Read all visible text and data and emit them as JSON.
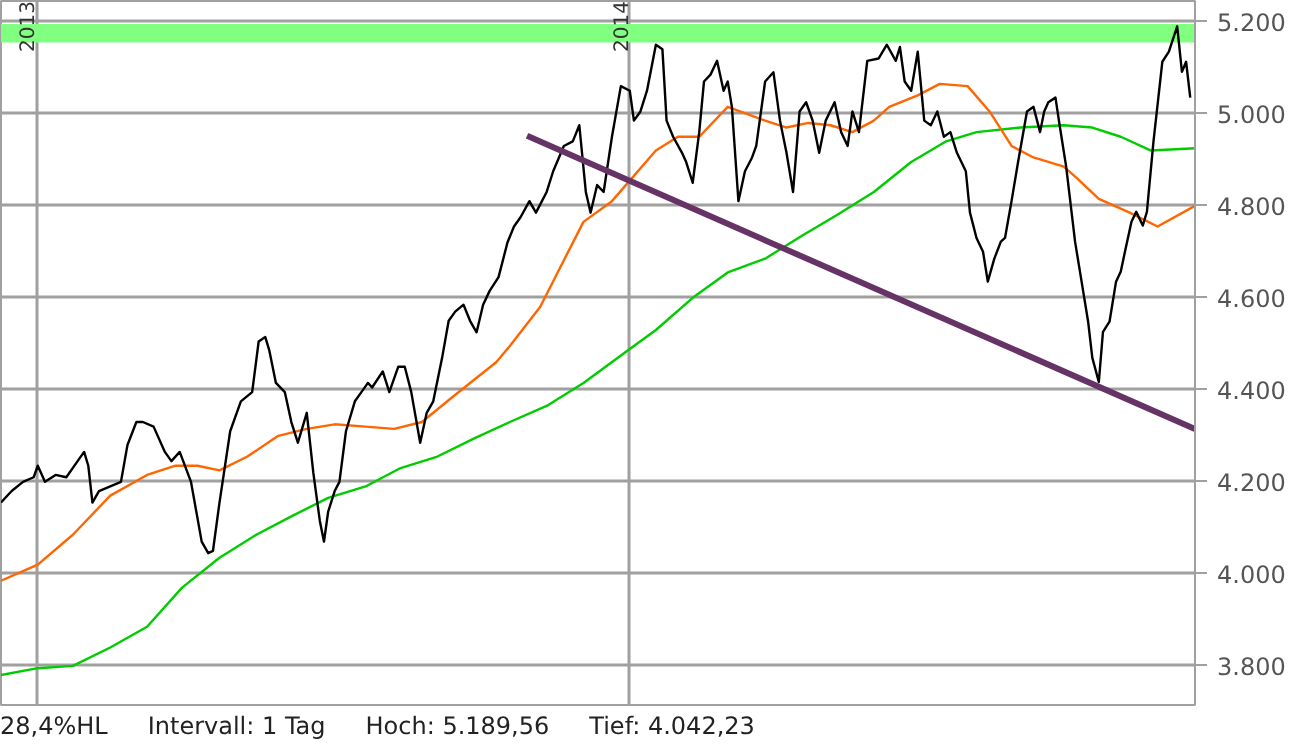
{
  "chart_data": {
    "type": "line",
    "xlim": [
      2012.941,
      2014.952
    ],
    "xticks": [
      2013,
      2014
    ],
    "ylim": [
      3715,
      5245
    ],
    "yticks": [
      {
        "value": 3800,
        "label": "3.800"
      },
      {
        "value": 4000,
        "label": "4.000"
      },
      {
        "value": 4200,
        "label": "4.200"
      },
      {
        "value": 4400,
        "label": "4.400"
      },
      {
        "value": 4600,
        "label": "4.600"
      },
      {
        "value": 4800,
        "label": "4.800"
      },
      {
        "value": 5000,
        "label": "5.000"
      },
      {
        "value": 5200,
        "label": "5.200"
      }
    ],
    "grid": true,
    "annotations": [
      "28,4%HL",
      "Intervall: 1 Tag",
      "Hoch: 5.189,56",
      "Tief: 4.042,23"
    ],
    "bands": [
      {
        "axis": "y",
        "from": 5155,
        "to": 5195,
        "color": "#80ff80"
      }
    ],
    "series": [
      {
        "color": "#00cc00",
        "x": [
          2012.941,
          2013.003,
          2013.062,
          2013.125,
          2013.187,
          2013.246,
          2013.309,
          2013.371,
          2013.43,
          2013.492,
          2013.555,
          2013.614,
          2013.676,
          2013.739,
          2013.798,
          2013.86,
          2013.922,
          2013.996,
          2014.044,
          2014.106,
          2014.165,
          2014.228,
          2014.29,
          2014.349,
          2014.411,
          2014.474,
          2014.533,
          2014.584,
          2014.658,
          2014.731,
          2014.779,
          2014.827,
          2014.878,
          2014.952
        ],
        "values": [
          3780,
          3795,
          3800,
          3840,
          3885,
          3970,
          4035,
          4085,
          4125,
          4165,
          4190,
          4230,
          4255,
          4295,
          4330,
          4365,
          4415,
          4485,
          4530,
          4600,
          4655,
          4685,
          4735,
          4780,
          4830,
          4895,
          4940,
          4960,
          4970,
          4975,
          4970,
          4950,
          4920,
          4925
        ]
      },
      {
        "color": "#ff6600",
        "x": [
          2012.941,
          2013.003,
          2013.062,
          2013.125,
          2013.187,
          2013.235,
          2013.272,
          2013.309,
          2013.356,
          2013.408,
          2013.456,
          2013.503,
          2013.555,
          2013.603,
          2013.65,
          2013.702,
          2013.775,
          2013.798,
          2013.849,
          2013.922,
          2013.97,
          2014.044,
          2014.081,
          2014.117,
          2014.165,
          2014.228,
          2014.264,
          2014.301,
          2014.338,
          2014.375,
          2014.411,
          2014.437,
          2014.485,
          2014.522,
          2014.569,
          2014.606,
          2014.643,
          2014.68,
          2014.731,
          2014.753,
          2014.79,
          2014.842,
          2014.889,
          2014.952
        ],
        "values": [
          3985,
          4020,
          4085,
          4170,
          4215,
          4235,
          4235,
          4225,
          4255,
          4300,
          4315,
          4325,
          4320,
          4315,
          4330,
          4385,
          4460,
          4495,
          4580,
          4765,
          4810,
          4920,
          4950,
          4950,
          5015,
          4985,
          4970,
          4980,
          4975,
          4960,
          4985,
          5015,
          5040,
          5065,
          5060,
          5005,
          4930,
          4905,
          4885,
          4860,
          4815,
          4785,
          4755,
          4800
        ]
      },
      {
        "color": "#000000",
        "x": [
          2012.941,
          2012.959,
          2012.978,
          2012.996,
          2013.003,
          2013.015,
          2013.033,
          2013.051,
          2013.07,
          2013.081,
          2013.088,
          2013.095,
          2013.106,
          2013.125,
          2013.143,
          2013.154,
          2013.169,
          2013.18,
          2013.198,
          2013.217,
          2013.228,
          2013.242,
          2013.261,
          2013.279,
          2013.29,
          2013.298,
          2013.309,
          2013.327,
          2013.345,
          2013.364,
          2013.375,
          2013.386,
          2013.393,
          2013.404,
          2013.419,
          2013.43,
          2013.441,
          2013.456,
          2013.467,
          2013.478,
          2013.485,
          2013.492,
          2013.503,
          2013.511,
          2013.522,
          2013.537,
          2013.548,
          2013.559,
          2013.566,
          2013.584,
          2013.595,
          2013.61,
          2013.621,
          2013.632,
          2013.647,
          2013.658,
          2013.669,
          2013.684,
          2013.695,
          2013.706,
          2013.72,
          2013.731,
          2013.742,
          2013.753,
          2013.764,
          2013.779,
          2013.794,
          2013.805,
          2013.816,
          2013.831,
          2013.842,
          2013.86,
          2013.871,
          2013.889,
          2013.904,
          2013.915,
          2013.926,
          2013.934,
          2013.945,
          2013.956,
          2013.97,
          2013.985,
          2014.0,
          2014.007,
          2014.018,
          2014.029,
          2014.044,
          2014.055,
          2014.062,
          2014.073,
          2014.088,
          2014.095,
          2014.106,
          2014.117,
          2014.125,
          2014.136,
          2014.147,
          2014.158,
          2014.165,
          2014.172,
          2014.183,
          2014.194,
          2014.206,
          2014.213,
          2014.228,
          2014.242,
          2014.253,
          2014.264,
          2014.275,
          2014.286,
          2014.297,
          2014.308,
          2014.319,
          2014.33,
          2014.345,
          2014.356,
          2014.367,
          2014.375,
          2014.386,
          2014.4,
          2014.419,
          2014.433,
          2014.448,
          2014.455,
          2014.463,
          2014.474,
          2014.485,
          2014.496,
          2014.507,
          2014.518,
          2014.529,
          2014.54,
          2014.551,
          2014.566,
          2014.573,
          2014.584,
          2014.595,
          2014.603,
          2014.614,
          2014.625,
          2014.632,
          2014.643,
          2014.654,
          2014.669,
          2014.68,
          2014.691,
          2014.698,
          2014.705,
          2014.717,
          2014.724,
          2014.735,
          2014.75,
          2014.761,
          2014.772,
          2014.779,
          2014.79,
          2014.797,
          2014.808,
          2014.819,
          2014.827,
          2014.834,
          2014.845,
          2014.853,
          2014.864,
          2014.871,
          2014.882,
          2014.897,
          2014.908,
          2014.922,
          2014.93,
          2014.937,
          2014.944
        ],
        "values": [
          4155,
          4180,
          4200,
          4210,
          4235,
          4200,
          4215,
          4210,
          4245,
          4265,
          4235,
          4155,
          4180,
          4190,
          4200,
          4280,
          4330,
          4330,
          4320,
          4265,
          4245,
          4265,
          4200,
          4070,
          4045,
          4050,
          4155,
          4310,
          4375,
          4395,
          4505,
          4515,
          4485,
          4415,
          4395,
          4330,
          4285,
          4350,
          4220,
          4115,
          4070,
          4135,
          4180,
          4200,
          4310,
          4375,
          4395,
          4415,
          4405,
          4440,
          4395,
          4450,
          4450,
          4395,
          4285,
          4350,
          4375,
          4470,
          4550,
          4570,
          4585,
          4550,
          4525,
          4585,
          4615,
          4645,
          4720,
          4755,
          4775,
          4810,
          4785,
          4830,
          4875,
          4930,
          4940,
          4975,
          4830,
          4785,
          4845,
          4830,
          4950,
          5060,
          5050,
          4985,
          5005,
          5050,
          5150,
          5140,
          4985,
          4950,
          4915,
          4895,
          4850,
          4960,
          5070,
          5085,
          5115,
          5050,
          5070,
          5015,
          4810,
          4875,
          4905,
          4930,
          5070,
          5090,
          4985,
          4915,
          4830,
          5005,
          5025,
          4985,
          4915,
          4985,
          5025,
          4960,
          4930,
          5005,
          4960,
          5115,
          5120,
          5150,
          5115,
          5145,
          5070,
          5050,
          5135,
          4985,
          4975,
          5005,
          4950,
          4960,
          4915,
          4875,
          4785,
          4730,
          4700,
          4635,
          4685,
          4722,
          4730,
          4810,
          4895,
          5005,
          5015,
          4960,
          5005,
          5025,
          5035,
          4975,
          4885,
          4722,
          4635,
          4548,
          4470,
          4417,
          4526,
          4548,
          4635,
          4657,
          4700,
          4765,
          4787,
          4757,
          4787,
          4939,
          5113,
          5135,
          5190,
          5091,
          5113,
          5035
        ]
      },
      {
        "color": "#663366",
        "x": [
          2013.827,
          2014.952
        ],
        "values": [
          4952,
          4315
        ]
      }
    ]
  }
}
